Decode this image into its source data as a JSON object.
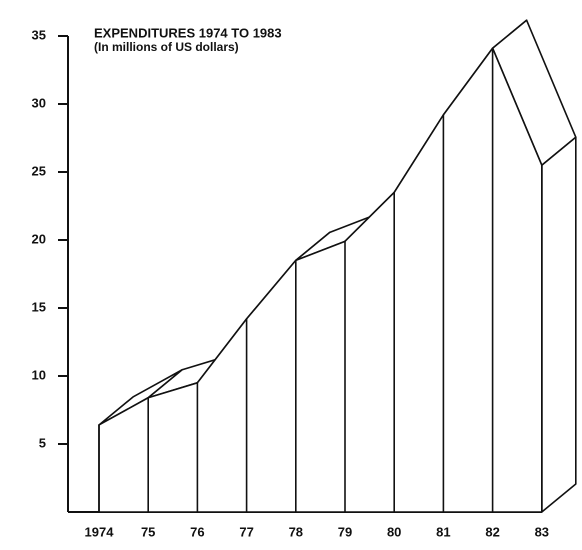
{
  "chart_data": {
    "type": "area3d",
    "title": "EXPENDITURES 1974 TO 1983",
    "subtitle": "(In millions of US dollars)",
    "categories": [
      "1974",
      "75",
      "76",
      "77",
      "78",
      "79",
      "80",
      "81",
      "82",
      "83"
    ],
    "values": [
      6.4,
      8.4,
      9.5,
      14.2,
      18.5,
      19.9,
      23.5,
      29.2,
      34.1,
      25.5
    ],
    "ylim": [
      0,
      35
    ],
    "yticks": [
      5,
      10,
      15,
      20,
      25,
      30,
      35
    ],
    "color": "#111111"
  }
}
